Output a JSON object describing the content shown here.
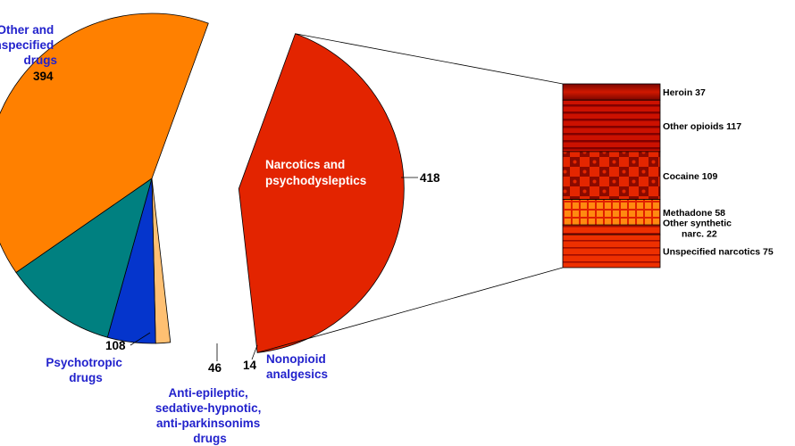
{
  "chart_data": {
    "type": "pie",
    "title": "",
    "slices": [
      {
        "label": "Narcotics and psychodysleptics",
        "value": 418,
        "color": "#e32400",
        "exploded": true
      },
      {
        "label": "Nonopioid analgesics",
        "value": 14,
        "color": "#ffc072"
      },
      {
        "label": "Anti-epileptic, sedative-hypnotic, anti-parkinsonims drugs",
        "value": 46,
        "color": "#0535cc"
      },
      {
        "label": "Psychotropic drugs",
        "value": 108,
        "color": "#008080"
      },
      {
        "label": "Other and unspecified drugs",
        "value": 394,
        "color": "#ff8000"
      }
    ],
    "breakdown": {
      "of": "Narcotics and psychodysleptics",
      "type": "stacked-bar",
      "segments": [
        {
          "label": "Heroin",
          "value": 37,
          "text": "Heroin  37",
          "pattern": "gradient",
          "color": "#b01000"
        },
        {
          "label": "Other opioids",
          "value": 117,
          "text": "Other opioids  117",
          "pattern": "stripes",
          "color": "#cc1100"
        },
        {
          "label": "Cocaine",
          "value": 109,
          "text": "Cocaine  109",
          "pattern": "checker",
          "color": "#d42000"
        },
        {
          "label": "Methadone",
          "value": 58,
          "text": "Methadone  58",
          "pattern": "grid",
          "color": "#ff6a00"
        },
        {
          "label": "Other synthetic narc.",
          "value": 22,
          "text_lines": [
            "Other synthetic",
            "narc.  22"
          ],
          "pattern": "stripes",
          "color": "#e32400"
        },
        {
          "label": "Unspecified narcotics",
          "value": 75,
          "text": "Unspecified narcotics  75",
          "pattern": "stripes",
          "color": "#e82800"
        }
      ]
    }
  },
  "labels": {
    "narcotics": [
      "Narcotics and",
      "psychodysleptics"
    ],
    "narcotics_value": "418",
    "other": [
      "Other and",
      "unspecified",
      "drugs"
    ],
    "other_value": "394",
    "psychotropic": [
      "Psychotropic",
      "drugs"
    ],
    "psychotropic_value": "108",
    "antiepileptic": [
      "Anti-epileptic,",
      "sedative-hypnotic,",
      "anti-parkinsonims",
      "drugs"
    ],
    "antiepileptic_value": "46",
    "nonopioid": [
      "Nonopioid",
      "analgesics"
    ],
    "nonopioid_value": "14"
  }
}
